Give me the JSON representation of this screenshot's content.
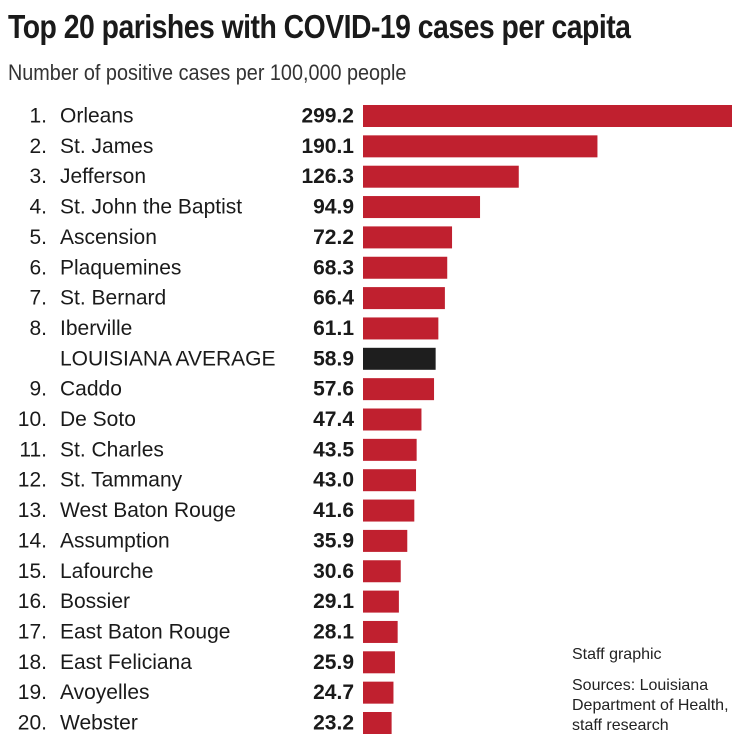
{
  "chart_data": {
    "type": "bar",
    "orientation": "horizontal",
    "title": "Top 20 parishes with COVID-19 cases per capita",
    "subtitle": "Number of positive cases per 100,000 people",
    "rows": [
      {
        "rank": "1.",
        "label": "Orleans",
        "value_text": "299.2",
        "value": 299.2,
        "highlight": false
      },
      {
        "rank": "2.",
        "label": "St. James",
        "value_text": "190.1",
        "value": 190.1,
        "highlight": false
      },
      {
        "rank": "3.",
        "label": "Jefferson",
        "value_text": "126.3",
        "value": 126.3,
        "highlight": false
      },
      {
        "rank": "4.",
        "label": "St. John the Baptist",
        "value_text": "94.9",
        "value": 94.9,
        "highlight": false
      },
      {
        "rank": "5.",
        "label": "Ascension",
        "value_text": "72.2",
        "value": 72.2,
        "highlight": false
      },
      {
        "rank": "6.",
        "label": "Plaquemines",
        "value_text": "68.3",
        "value": 68.3,
        "highlight": false
      },
      {
        "rank": "7.",
        "label": "St. Bernard",
        "value_text": "66.4",
        "value": 66.4,
        "highlight": false
      },
      {
        "rank": "8.",
        "label": "Iberville",
        "value_text": "61.1",
        "value": 61.1,
        "highlight": false
      },
      {
        "rank": "",
        "label": "LOUISIANA AVERAGE",
        "value_text": "58.9",
        "value": 58.9,
        "highlight": true
      },
      {
        "rank": "9.",
        "label": "Caddo",
        "value_text": "57.6",
        "value": 57.6,
        "highlight": false
      },
      {
        "rank": "10.",
        "label": "De Soto",
        "value_text": "47.4",
        "value": 47.4,
        "highlight": false
      },
      {
        "rank": "11.",
        "label": "St. Charles",
        "value_text": "43.5",
        "value": 43.5,
        "highlight": false
      },
      {
        "rank": "12.",
        "label": "St. Tammany",
        "value_text": "43.0",
        "value": 43.0,
        "highlight": false
      },
      {
        "rank": "13.",
        "label": "West Baton Rouge",
        "value_text": "41.6",
        "value": 41.6,
        "highlight": false
      },
      {
        "rank": "14.",
        "label": "Assumption",
        "value_text": "35.9",
        "value": 35.9,
        "highlight": false
      },
      {
        "rank": "15.",
        "label": "Lafourche",
        "value_text": "30.6",
        "value": 30.6,
        "highlight": false
      },
      {
        "rank": "16.",
        "label": "Bossier",
        "value_text": "29.1",
        "value": 29.1,
        "highlight": false
      },
      {
        "rank": "17.",
        "label": "East Baton Rouge",
        "value_text": "28.1",
        "value": 28.1,
        "highlight": false
      },
      {
        "rank": "18.",
        "label": "East Feliciana",
        "value_text": "25.9",
        "value": 25.9,
        "highlight": false
      },
      {
        "rank": "19.",
        "label": "Avoyelles",
        "value_text": "24.7",
        "value": 24.7,
        "highlight": false
      },
      {
        "rank": "20.",
        "label": "Webster",
        "value_text": "23.2",
        "value": 23.2,
        "highlight": false
      }
    ],
    "xlim": [
      0,
      299.2
    ],
    "grid": false,
    "bar_color": "#c0202f",
    "highlight_color": "#1e1e1e"
  },
  "footer": {
    "credit": "Staff graphic",
    "sources": "Sources: Louisiana Department of Health, staff research"
  }
}
